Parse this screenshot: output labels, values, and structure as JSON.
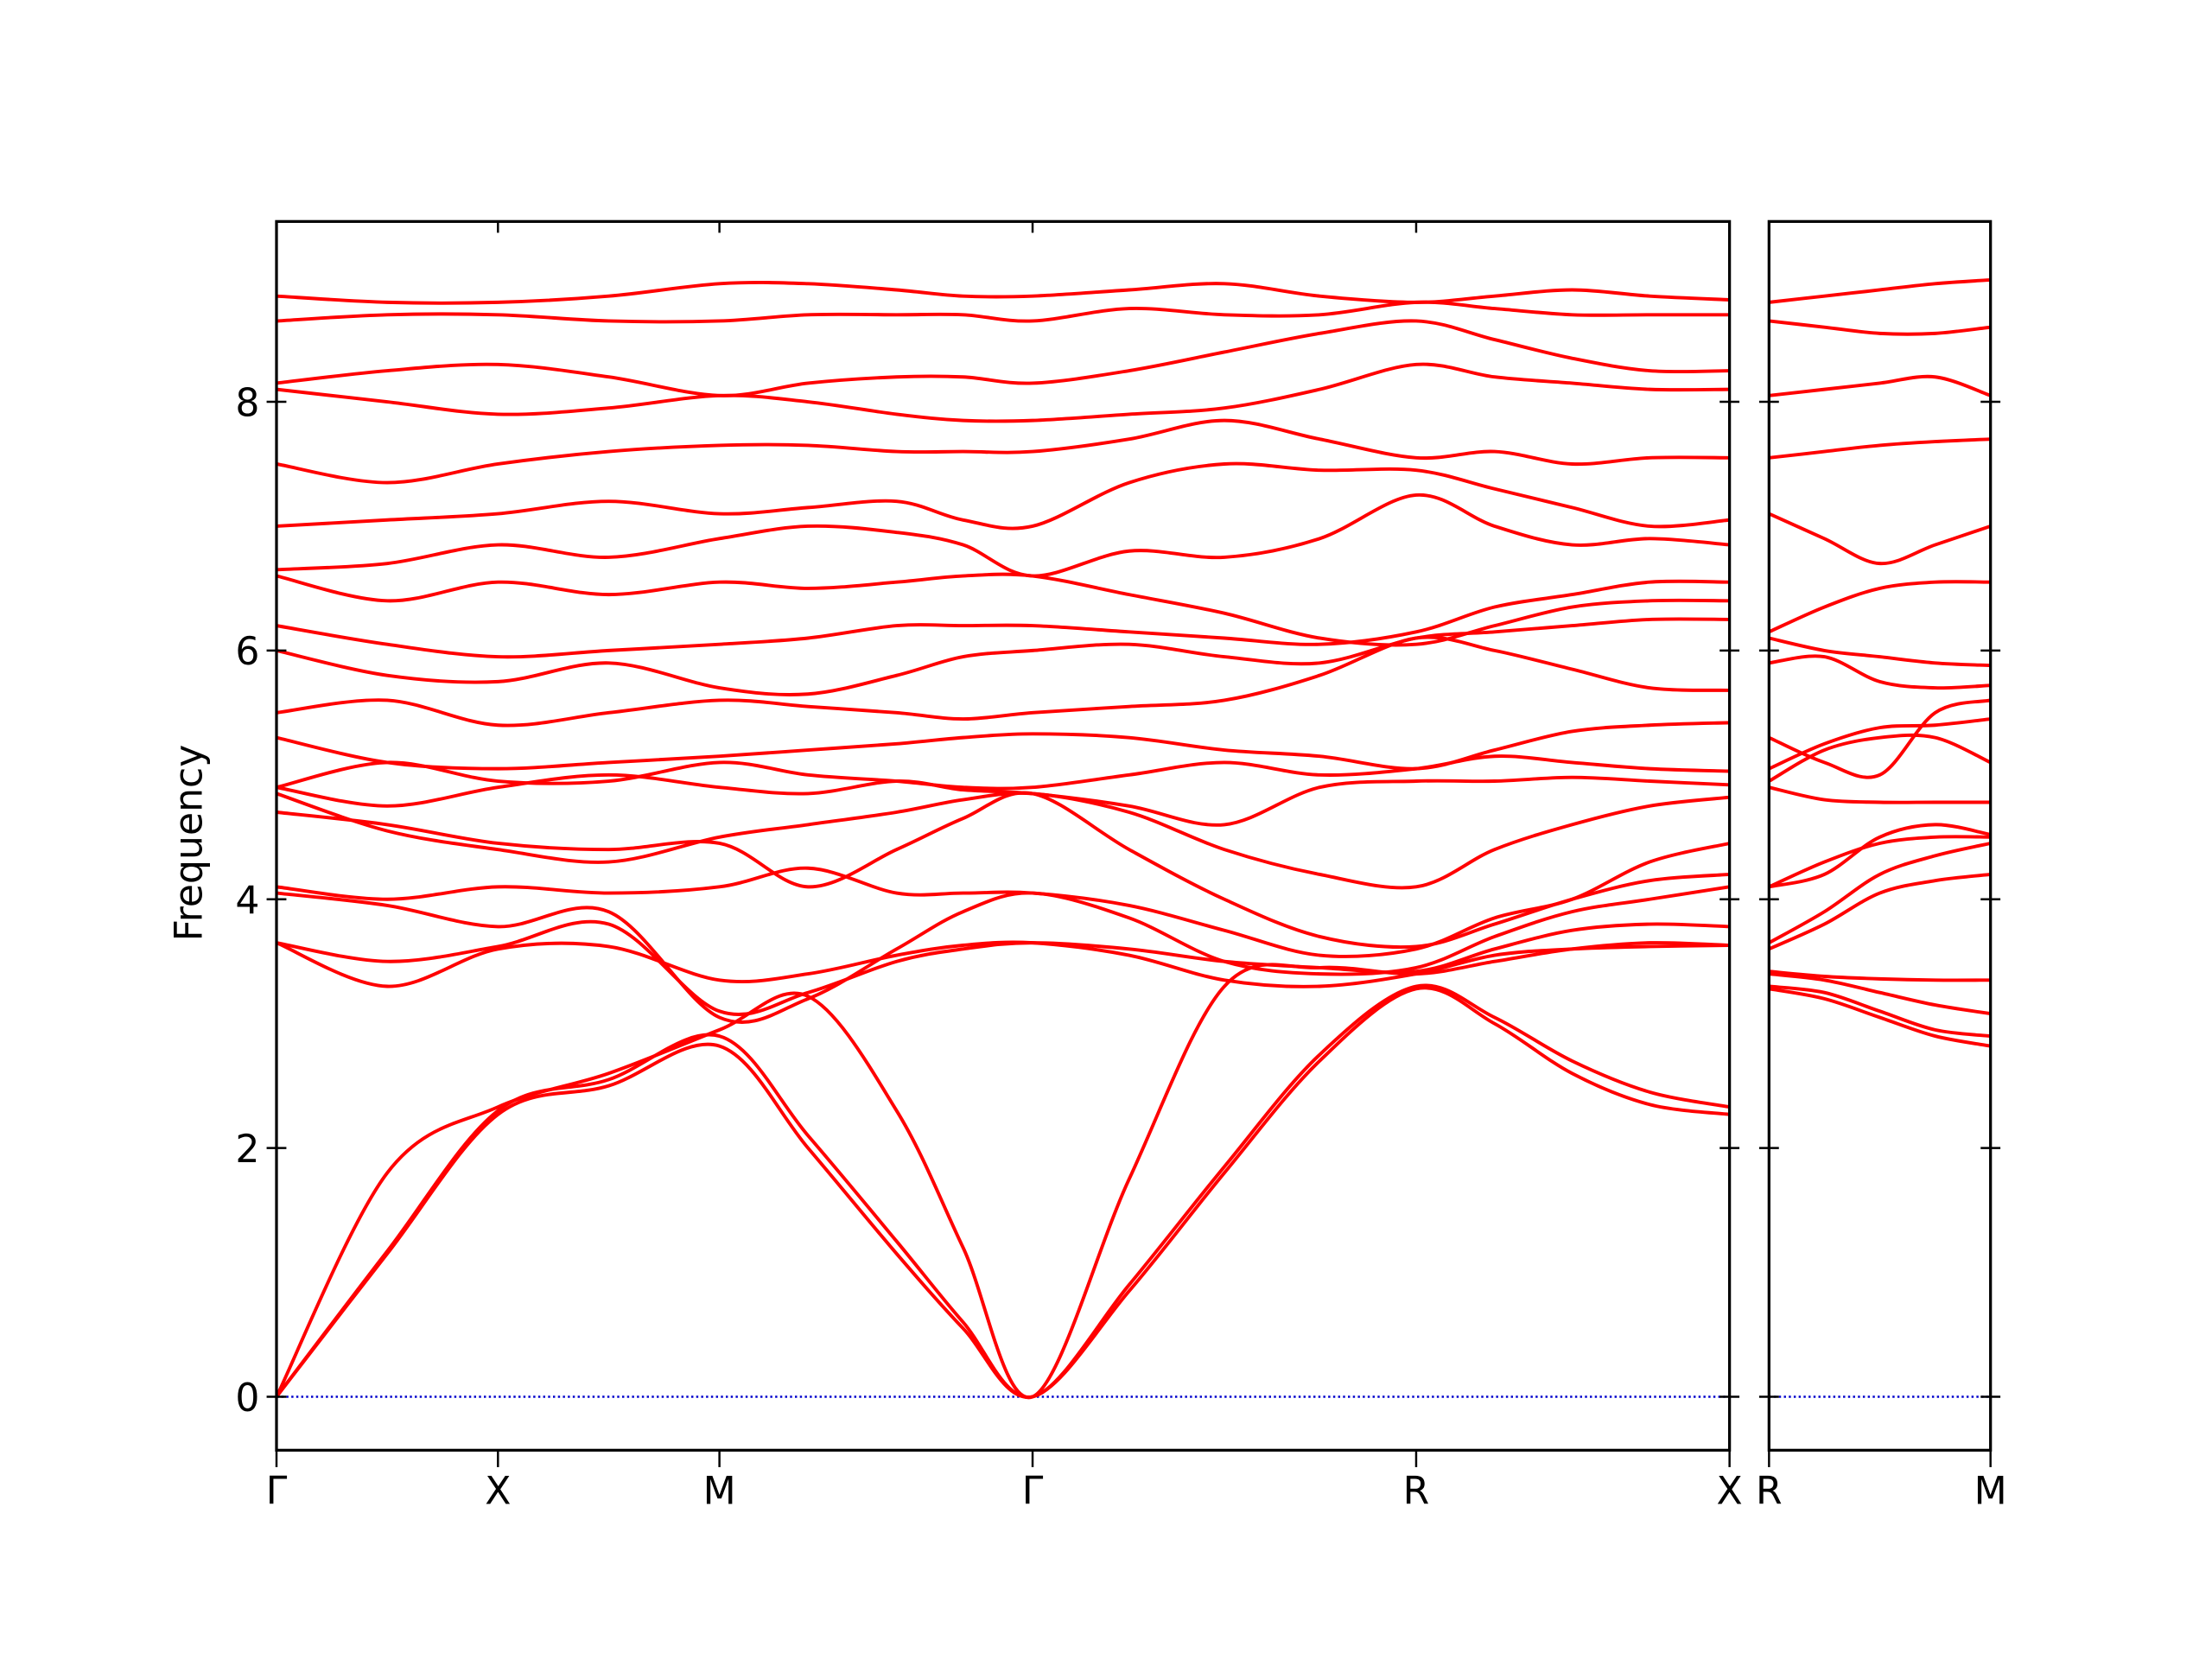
{
  "chart_data": [
    {
      "type": "line",
      "ylabel": "Frequency",
      "color": "#ff0000",
      "xlim": [
        0,
        6.561
      ],
      "ylim": [
        -0.43,
        9.45
      ],
      "xticks": [
        {
          "value": 0,
          "label": "Γ"
        },
        {
          "value": 1,
          "label": "X"
        },
        {
          "value": 2,
          "label": "M"
        },
        {
          "value": 3.414,
          "label": "Γ"
        },
        {
          "value": 5.146,
          "label": "R"
        },
        {
          "value": 6.561,
          "label": "X"
        }
      ],
      "yticks": [
        0,
        2,
        4,
        6,
        8
      ],
      "hlines": [
        {
          "y": 0,
          "color": "#0000cc",
          "style": "dotted"
        }
      ],
      "x": [
        0,
        0.5,
        1,
        1.5,
        2,
        2.4,
        2.8,
        3.1,
        3.414,
        3.85,
        4.28,
        4.71,
        5.146,
        5.5,
        5.85,
        6.2,
        6.561
      ],
      "series": [
        {
          "values": [
            0,
            1.15,
            2.27,
            2.5,
            2.82,
            2.0,
            1.15,
            0.55,
            0,
            0.85,
            1.8,
            2.7,
            3.28,
            3.0,
            2.6,
            2.35,
            2.27
          ]
        },
        {
          "values": [
            0,
            1.17,
            2.3,
            2.55,
            2.9,
            2.1,
            1.25,
            0.6,
            0,
            0.9,
            1.85,
            2.75,
            3.3,
            3.05,
            2.7,
            2.45,
            2.33
          ]
        },
        {
          "values": [
            0,
            1.8,
            2.33,
            2.6,
            2.95,
            3.22,
            2.3,
            1.2,
            0,
            1.75,
            3.3,
            3.45,
            3.4,
            3.5,
            3.6,
            3.65,
            3.63
          ]
        },
        {
          "values": [
            3.65,
            3.3,
            3.6,
            3.62,
            3.35,
            3.4,
            3.55,
            3.63,
            3.65,
            3.55,
            3.35,
            3.3,
            3.4,
            3.55,
            3.6,
            3.62,
            3.63
          ]
        },
        {
          "values": [
            3.65,
            3.5,
            3.62,
            3.8,
            3.1,
            3.25,
            3.5,
            3.6,
            3.65,
            3.6,
            3.5,
            3.45,
            3.42,
            3.6,
            3.75,
            3.8,
            3.78
          ]
        },
        {
          "values": [
            4.05,
            3.95,
            3.78,
            3.9,
            3.05,
            3.2,
            3.6,
            3.9,
            4.05,
            3.85,
            3.5,
            3.4,
            3.45,
            3.7,
            3.9,
            4.0,
            4.1
          ]
        },
        {
          "values": [
            4.1,
            4.0,
            4.1,
            4.05,
            4.1,
            4.25,
            4.05,
            4.05,
            4.05,
            3.95,
            3.75,
            3.55,
            3.6,
            3.85,
            4.0,
            4.3,
            4.45
          ]
        },
        {
          "values": [
            4.7,
            4.6,
            4.45,
            4.4,
            4.45,
            4.1,
            4.4,
            4.65,
            4.85,
            4.4,
            4.0,
            3.7,
            3.62,
            3.8,
            4.0,
            4.15,
            4.2
          ]
        },
        {
          "values": [
            4.85,
            4.55,
            4.4,
            4.3,
            4.5,
            4.6,
            4.7,
            4.8,
            4.85,
            4.7,
            4.4,
            4.2,
            4.1,
            4.4,
            4.6,
            4.75,
            4.82
          ]
        },
        {
          "values": [
            4.9,
            4.75,
            4.9,
            5.0,
            4.9,
            4.85,
            4.95,
            4.88,
            4.85,
            4.75,
            4.6,
            4.9,
            4.95,
            4.95,
            4.98,
            4.95,
            4.92
          ]
        },
        {
          "values": [
            4.9,
            5.1,
            4.95,
            4.95,
            5.1,
            5.0,
            4.95,
            4.9,
            4.9,
            5.0,
            5.1,
            5.0,
            5.05,
            5.15,
            5.1,
            5.05,
            5.03
          ]
        },
        {
          "values": [
            5.3,
            5.1,
            5.05,
            5.1,
            5.15,
            5.2,
            5.25,
            5.3,
            5.33,
            5.3,
            5.2,
            5.15,
            5.05,
            5.2,
            5.35,
            5.4,
            5.42
          ]
        },
        {
          "values": [
            5.5,
            5.6,
            5.4,
            5.5,
            5.6,
            5.55,
            5.5,
            5.45,
            5.5,
            5.55,
            5.6,
            5.8,
            6.1,
            6.0,
            5.85,
            5.7,
            5.68
          ]
        },
        {
          "values": [
            6.0,
            5.8,
            5.75,
            5.9,
            5.7,
            5.65,
            5.8,
            5.95,
            6.0,
            6.05,
            5.95,
            5.9,
            6.1,
            6.15,
            6.2,
            6.25,
            6.25
          ]
        },
        {
          "values": [
            6.2,
            6.05,
            5.95,
            6.0,
            6.05,
            6.1,
            6.2,
            6.2,
            6.2,
            6.15,
            6.1,
            6.05,
            6.15,
            6.35,
            6.45,
            6.55,
            6.55
          ]
        },
        {
          "values": [
            6.6,
            6.4,
            6.55,
            6.45,
            6.55,
            6.5,
            6.55,
            6.6,
            6.6,
            6.45,
            6.3,
            6.1,
            6.05,
            6.2,
            6.35,
            6.4,
            6.4
          ]
        },
        {
          "values": [
            6.65,
            6.7,
            6.85,
            6.75,
            6.9,
            7.0,
            6.95,
            6.85,
            6.6,
            6.8,
            6.75,
            6.9,
            7.25,
            7.0,
            6.85,
            6.9,
            6.85
          ]
        },
        {
          "values": [
            7.0,
            7.05,
            7.1,
            7.2,
            7.1,
            7.15,
            7.2,
            7.05,
            7.0,
            7.35,
            7.5,
            7.45,
            7.45,
            7.3,
            7.15,
            7.0,
            7.05
          ]
        },
        {
          "values": [
            7.5,
            7.35,
            7.5,
            7.6,
            7.65,
            7.65,
            7.6,
            7.6,
            7.6,
            7.7,
            7.85,
            7.7,
            7.55,
            7.6,
            7.5,
            7.55,
            7.55
          ]
        },
        {
          "values": [
            8.1,
            8.0,
            7.9,
            7.95,
            8.05,
            8.0,
            7.9,
            7.85,
            7.85,
            7.9,
            7.95,
            8.1,
            8.3,
            8.2,
            8.15,
            8.1,
            8.1
          ]
        },
        {
          "values": [
            8.15,
            8.25,
            8.3,
            8.2,
            8.05,
            8.15,
            8.2,
            8.2,
            8.15,
            8.25,
            8.4,
            8.55,
            8.65,
            8.5,
            8.35,
            8.25,
            8.25
          ]
        },
        {
          "values": [
            8.65,
            8.7,
            8.7,
            8.65,
            8.65,
            8.7,
            8.7,
            8.7,
            8.65,
            8.75,
            8.7,
            8.7,
            8.8,
            8.75,
            8.7,
            8.7,
            8.7
          ]
        },
        {
          "values": [
            8.85,
            8.8,
            8.8,
            8.85,
            8.95,
            8.95,
            8.9,
            8.85,
            8.85,
            8.9,
            8.95,
            8.85,
            8.8,
            8.85,
            8.9,
            8.85,
            8.82
          ]
        }
      ]
    },
    {
      "type": "line",
      "color": "#ff0000",
      "show_ytick_labels": false,
      "xlim": [
        0,
        1
      ],
      "ylim": [
        -0.43,
        9.45
      ],
      "xticks": [
        {
          "value": 0,
          "label": "R"
        },
        {
          "value": 1,
          "label": "M"
        }
      ],
      "yticks": [
        0,
        2,
        4,
        6,
        8
      ],
      "hlines": [
        {
          "y": 0,
          "color": "#0000cc",
          "style": "dotted"
        }
      ],
      "x": [
        0,
        0.25,
        0.5,
        0.75,
        1
      ],
      "series": [
        {
          "values": [
            3.28,
            3.2,
            3.05,
            2.9,
            2.82
          ]
        },
        {
          "values": [
            3.3,
            3.25,
            3.1,
            2.95,
            2.9
          ]
        },
        {
          "values": [
            3.4,
            3.35,
            3.25,
            3.15,
            3.08
          ]
        },
        {
          "values": [
            3.42,
            3.38,
            3.36,
            3.35,
            3.35
          ]
        },
        {
          "values": [
            3.6,
            3.8,
            4.05,
            4.15,
            4.2
          ]
        },
        {
          "values": [
            3.65,
            3.9,
            4.2,
            4.35,
            4.45
          ]
        },
        {
          "values": [
            4.1,
            4.3,
            4.45,
            4.5,
            4.5
          ]
        },
        {
          "values": [
            4.1,
            4.2,
            4.5,
            4.6,
            4.52
          ]
        },
        {
          "values": [
            4.9,
            4.8,
            4.78,
            4.78,
            4.78
          ]
        },
        {
          "values": [
            4.95,
            5.2,
            5.3,
            5.3,
            5.1
          ]
        },
        {
          "values": [
            5.05,
            5.25,
            5.38,
            5.4,
            5.45
          ]
        },
        {
          "values": [
            5.3,
            5.1,
            5.0,
            5.5,
            5.6
          ]
        },
        {
          "values": [
            5.9,
            5.95,
            5.75,
            5.7,
            5.72
          ]
        },
        {
          "values": [
            6.1,
            6.0,
            5.95,
            5.9,
            5.88
          ]
        },
        {
          "values": [
            6.15,
            6.35,
            6.5,
            6.55,
            6.55
          ]
        },
        {
          "values": [
            7.1,
            6.9,
            6.7,
            6.85,
            7.0
          ]
        },
        {
          "values": [
            7.55,
            7.6,
            7.65,
            7.68,
            7.7
          ]
        },
        {
          "values": [
            8.05,
            8.1,
            8.15,
            8.2,
            8.05
          ]
        },
        {
          "values": [
            8.65,
            8.6,
            8.55,
            8.55,
            8.6
          ]
        },
        {
          "values": [
            8.8,
            8.85,
            8.9,
            8.95,
            8.98
          ]
        }
      ]
    }
  ]
}
